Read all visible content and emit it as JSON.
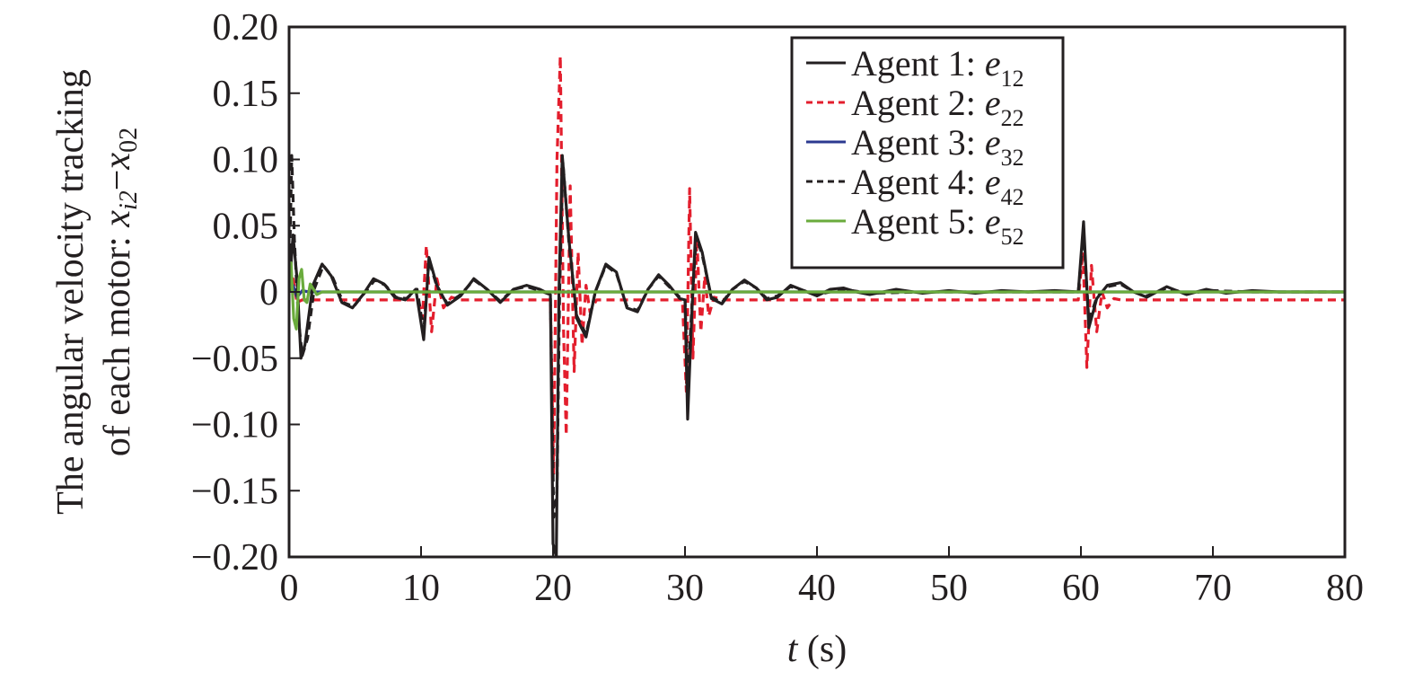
{
  "chart_data": {
    "type": "line",
    "xlabel": {
      "var": "t",
      "unit": " (s)"
    },
    "ylabel": {
      "line1": "The angular velocity tracking",
      "line2_prefix": "of each motor: ",
      "var1": "x",
      "sub1": "i2",
      "minus": "−",
      "var2": "x",
      "sub2": "02"
    },
    "xlim": [
      0,
      80
    ],
    "ylim": [
      -0.2,
      0.2
    ],
    "x_ticks": [
      0,
      10,
      20,
      30,
      40,
      50,
      60,
      70,
      80
    ],
    "x_tick_labels": [
      "0",
      "10",
      "20",
      "30",
      "40",
      "50",
      "60",
      "70",
      "80"
    ],
    "y_ticks": [
      0.2,
      0.15,
      0.1,
      0.05,
      0,
      -0.05,
      -0.1,
      -0.15,
      -0.2
    ],
    "y_tick_labels": [
      "0.20",
      "0.15",
      "0.10",
      "0.05",
      "0",
      "−0.05",
      "−0.10",
      "−0.15",
      "−0.20"
    ],
    "grid": false,
    "legend_position": "top-right",
    "series": [
      {
        "name": "Agent 1: e12",
        "label_prefix": "Agent 1: ",
        "label_var": "e",
        "label_sub": "12",
        "color": "#231f20",
        "dash": "solid",
        "points": [
          [
            0,
            0
          ],
          [
            0.3,
            0.043
          ],
          [
            0.6,
            0.01
          ],
          [
            0.9,
            -0.05
          ],
          [
            1.2,
            -0.04
          ],
          [
            1.8,
            0.005
          ],
          [
            2.5,
            0.021
          ],
          [
            3.2,
            0.012
          ],
          [
            4.0,
            -0.008
          ],
          [
            4.8,
            -0.012
          ],
          [
            5.6,
            -0.002
          ],
          [
            6.4,
            0.01
          ],
          [
            7.2,
            0.006
          ],
          [
            8.0,
            -0.004
          ],
          [
            8.8,
            -0.006
          ],
          [
            9.6,
            0.002
          ],
          [
            10.2,
            -0.036
          ],
          [
            10.6,
            0.026
          ],
          [
            11.2,
            0.005
          ],
          [
            12.0,
            -0.01
          ],
          [
            13.0,
            -0.003
          ],
          [
            14.0,
            0.01
          ],
          [
            15.0,
            0.002
          ],
          [
            16.0,
            -0.008
          ],
          [
            17.0,
            0.002
          ],
          [
            18.0,
            0.005
          ],
          [
            19.0,
            0.002
          ],
          [
            19.8,
            -0.002
          ],
          [
            20.0,
            -0.19
          ],
          [
            20.25,
            -0.2
          ],
          [
            20.45,
            0.0
          ],
          [
            20.7,
            0.103
          ],
          [
            21.2,
            0.04
          ],
          [
            21.8,
            -0.02
          ],
          [
            22.5,
            -0.034
          ],
          [
            23.2,
            0.0
          ],
          [
            24.0,
            0.021
          ],
          [
            24.8,
            0.015
          ],
          [
            25.6,
            -0.012
          ],
          [
            26.4,
            -0.015
          ],
          [
            27.2,
            0.002
          ],
          [
            28.0,
            0.013
          ],
          [
            28.8,
            0.005
          ],
          [
            29.6,
            -0.005
          ],
          [
            30.0,
            -0.006
          ],
          [
            30.2,
            -0.096
          ],
          [
            30.5,
            -0.02
          ],
          [
            30.8,
            0.045
          ],
          [
            31.3,
            0.03
          ],
          [
            32.0,
            -0.005
          ],
          [
            32.8,
            -0.009
          ],
          [
            33.6,
            0.002
          ],
          [
            34.5,
            0.009
          ],
          [
            35.4,
            0.003
          ],
          [
            36.2,
            -0.006
          ],
          [
            37.0,
            -0.004
          ],
          [
            38.0,
            0.005
          ],
          [
            39.0,
            0.001
          ],
          [
            40.0,
            -0.003
          ],
          [
            41.0,
            0.002
          ],
          [
            42.0,
            0.003
          ],
          [
            43.0,
            0.0
          ],
          [
            44.0,
            -0.002
          ],
          [
            46.0,
            0.002
          ],
          [
            48.0,
            -0.001
          ],
          [
            50.0,
            0.001
          ],
          [
            52.0,
            -0.001
          ],
          [
            54.0,
            0.001
          ],
          [
            56.0,
            0.0
          ],
          [
            58.0,
            0.001
          ],
          [
            59.8,
            0.0
          ],
          [
            60.2,
            0.053
          ],
          [
            60.6,
            -0.027
          ],
          [
            61.2,
            -0.005
          ],
          [
            62.0,
            0.005
          ],
          [
            63.0,
            0.007
          ],
          [
            64.0,
            0.0
          ],
          [
            65.0,
            -0.004
          ],
          [
            66.5,
            0.004
          ],
          [
            68.0,
            -0.002
          ],
          [
            69.5,
            0.002
          ],
          [
            71.0,
            -0.001
          ],
          [
            73.0,
            0.001
          ],
          [
            75.0,
            0.0
          ],
          [
            80.0,
            0.0
          ]
        ]
      },
      {
        "name": "Agent 2: e22",
        "label_prefix": "Agent 2: ",
        "label_var": "e",
        "label_sub": "22",
        "color": "#e31e2d",
        "dash": "dashed",
        "points": [
          [
            0,
            0
          ],
          [
            0.3,
            0.01
          ],
          [
            0.6,
            -0.008
          ],
          [
            1.0,
            -0.006
          ],
          [
            2.0,
            -0.006
          ],
          [
            5.0,
            -0.006
          ],
          [
            9.8,
            -0.006
          ],
          [
            10.1,
            -0.02
          ],
          [
            10.4,
            0.035
          ],
          [
            10.8,
            -0.03
          ],
          [
            11.2,
            0.01
          ],
          [
            11.7,
            -0.012
          ],
          [
            12.3,
            -0.004
          ],
          [
            13.0,
            -0.006
          ],
          [
            19.8,
            -0.006
          ],
          [
            20.05,
            -0.138
          ],
          [
            20.3,
            0.1
          ],
          [
            20.55,
            0.178
          ],
          [
            20.8,
            -0.03
          ],
          [
            21.0,
            -0.108
          ],
          [
            21.3,
            0.08
          ],
          [
            21.6,
            -0.06
          ],
          [
            21.9,
            0.03
          ],
          [
            22.2,
            -0.04
          ],
          [
            22.5,
            0.005
          ],
          [
            22.8,
            -0.015
          ],
          [
            23.3,
            -0.006
          ],
          [
            29.8,
            -0.006
          ],
          [
            30.1,
            -0.075
          ],
          [
            30.35,
            0.078
          ],
          [
            30.6,
            -0.05
          ],
          [
            30.9,
            0.04
          ],
          [
            31.2,
            -0.03
          ],
          [
            31.5,
            0.012
          ],
          [
            31.8,
            -0.018
          ],
          [
            32.2,
            -0.004
          ],
          [
            33.0,
            -0.006
          ],
          [
            59.8,
            -0.006
          ],
          [
            60.15,
            0.03
          ],
          [
            60.45,
            -0.057
          ],
          [
            60.8,
            0.02
          ],
          [
            61.2,
            -0.03
          ],
          [
            61.6,
            0.0
          ],
          [
            62.0,
            -0.012
          ],
          [
            62.5,
            -0.005
          ],
          [
            63.0,
            -0.006
          ],
          [
            80,
            -0.006
          ]
        ]
      },
      {
        "name": "Agent 3: e32",
        "label_prefix": "Agent 3: ",
        "label_var": "e",
        "label_sub": "32",
        "color": "#2b3990",
        "dash": "solid",
        "points": [
          [
            0,
            0
          ],
          [
            0.3,
            0.005
          ],
          [
            0.6,
            -0.004
          ],
          [
            1.0,
            0.001
          ],
          [
            1.5,
            0.0
          ],
          [
            80,
            0.0
          ]
        ]
      },
      {
        "name": "Agent 4: e42",
        "label_prefix": "Agent 4: ",
        "label_var": "e",
        "label_sub": "42",
        "color": "#231f20",
        "dash": "dashed",
        "points": [
          [
            0,
            0
          ],
          [
            0.2,
            0.103
          ],
          [
            0.4,
            0.04
          ],
          [
            0.7,
            -0.02
          ],
          [
            1.0,
            -0.048
          ],
          [
            1.4,
            -0.035
          ],
          [
            1.9,
            0.002
          ],
          [
            2.6,
            0.02
          ],
          [
            3.3,
            0.011
          ],
          [
            4.1,
            -0.008
          ],
          [
            4.9,
            -0.011
          ],
          [
            5.7,
            -0.001
          ],
          [
            6.5,
            0.009
          ],
          [
            7.3,
            0.005
          ],
          [
            8.1,
            -0.004
          ],
          [
            8.9,
            -0.005
          ],
          [
            9.7,
            0.002
          ],
          [
            10.2,
            -0.03
          ],
          [
            10.6,
            0.024
          ],
          [
            11.2,
            0.004
          ],
          [
            12.0,
            -0.009
          ],
          [
            13.0,
            -0.002
          ],
          [
            14.0,
            0.009
          ],
          [
            15.0,
            0.002
          ],
          [
            16.0,
            -0.007
          ],
          [
            17.0,
            0.002
          ],
          [
            18.0,
            0.004
          ],
          [
            19.0,
            0.001
          ],
          [
            19.8,
            -0.002
          ],
          [
            20.05,
            -0.17
          ],
          [
            20.3,
            -0.15
          ],
          [
            20.5,
            0.0
          ],
          [
            20.75,
            0.098
          ],
          [
            21.2,
            0.038
          ],
          [
            21.8,
            -0.018
          ],
          [
            22.5,
            -0.032
          ],
          [
            23.2,
            0.0
          ],
          [
            24.0,
            0.02
          ],
          [
            24.8,
            0.014
          ],
          [
            25.6,
            -0.011
          ],
          [
            26.4,
            -0.014
          ],
          [
            27.2,
            0.002
          ],
          [
            28.0,
            0.012
          ],
          [
            28.8,
            0.004
          ],
          [
            29.6,
            -0.004
          ],
          [
            30.0,
            -0.005
          ],
          [
            30.2,
            -0.07
          ],
          [
            30.5,
            -0.015
          ],
          [
            30.85,
            0.042
          ],
          [
            31.3,
            0.028
          ],
          [
            32.0,
            -0.004
          ],
          [
            32.8,
            -0.008
          ],
          [
            33.6,
            0.002
          ],
          [
            34.5,
            0.008
          ],
          [
            35.4,
            0.003
          ],
          [
            36.2,
            -0.005
          ],
          [
            37.0,
            -0.003
          ],
          [
            38.0,
            0.004
          ],
          [
            40.0,
            -0.002
          ],
          [
            42.0,
            0.002
          ],
          [
            44.0,
            -0.001
          ],
          [
            48.0,
            0.0
          ],
          [
            59.8,
            0.0
          ],
          [
            60.2,
            0.045
          ],
          [
            60.6,
            -0.022
          ],
          [
            61.2,
            -0.004
          ],
          [
            62.0,
            0.004
          ],
          [
            63.0,
            0.006
          ],
          [
            64.0,
            0.0
          ],
          [
            65.0,
            -0.003
          ],
          [
            66.5,
            0.003
          ],
          [
            68.0,
            -0.001
          ],
          [
            70.0,
            0.001
          ],
          [
            73.0,
            0.0
          ],
          [
            80.0,
            0.0
          ]
        ]
      },
      {
        "name": "Agent 5: e52",
        "label_prefix": "Agent 5: ",
        "label_var": "e",
        "label_sub": "52",
        "color": "#6aab3c",
        "dash": "solid",
        "points": [
          [
            0,
            0
          ],
          [
            0.15,
            0.022
          ],
          [
            0.35,
            -0.02
          ],
          [
            0.55,
            -0.028
          ],
          [
            0.75,
            0.01
          ],
          [
            0.95,
            0.017
          ],
          [
            1.15,
            -0.006
          ],
          [
            1.35,
            -0.008
          ],
          [
            1.6,
            0.006
          ],
          [
            1.85,
            0.002
          ],
          [
            2.1,
            -0.002
          ],
          [
            2.5,
            0.0
          ],
          [
            80,
            0.0
          ]
        ]
      }
    ]
  }
}
